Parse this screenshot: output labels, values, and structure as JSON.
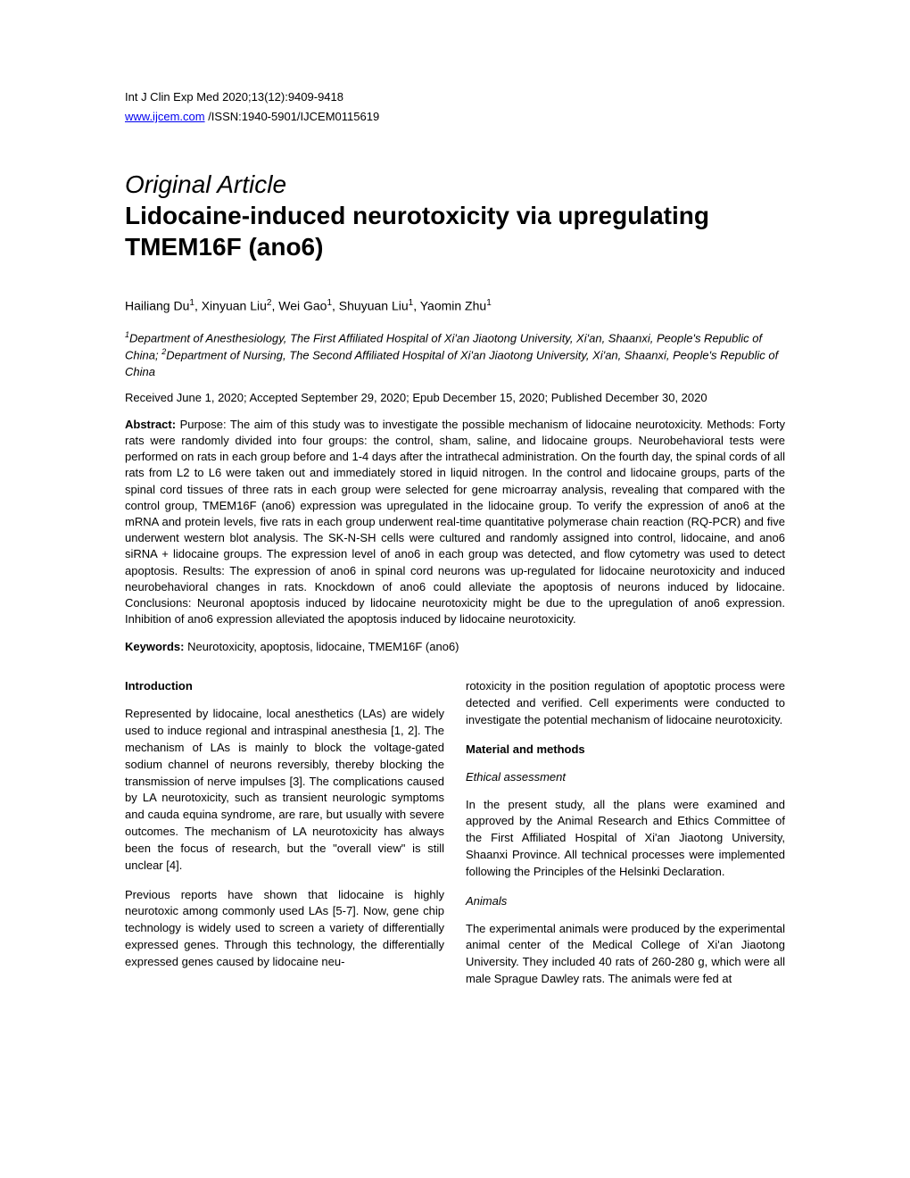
{
  "header": {
    "journal_ref": "Int J Clin Exp Med 2020;13(12):9409-9418",
    "link_text": "www.ijcem.com",
    "issn_text": " /ISSN:1940-5901/IJCEM0115619"
  },
  "article": {
    "type": "Original Article",
    "title": "Lidocaine-induced neurotoxicity via upregulating TMEM16F (ano6)"
  },
  "authors": {
    "a1_name": "Hailiang Du",
    "a1_sup": "1",
    "a2_name": ", Xinyuan Liu",
    "a2_sup": "2",
    "a3_name": ", Wei Gao",
    "a3_sup": "1",
    "a4_name": ", Shuyuan Liu",
    "a4_sup": "1",
    "a5_name": ", Yaomin Zhu",
    "a5_sup": "1"
  },
  "affiliations": {
    "sup1": "1",
    "text1": "Department of Anesthesiology, The First Affiliated Hospital of Xi'an Jiaotong University, Xi'an, Shaanxi, People's Republic of China; ",
    "sup2": "2",
    "text2": "Department of Nursing, The Second Affiliated Hospital of Xi'an Jiaotong University, Xi'an, Shaanxi, People's Republic of China"
  },
  "dates": "Received June 1, 2020; Accepted September 29, 2020; Epub December 15, 2020; Published December 30, 2020",
  "abstract": {
    "label": "Abstract:",
    "text": " Purpose: The aim of this study was to investigate the possible mechanism of lidocaine neurotoxicity. Methods: Forty rats were randomly divided into four groups: the control, sham, saline, and lidocaine groups. Neurobehavioral tests were performed on rats in each group before and 1-4 days after the intrathecal administration. On the fourth day, the spinal cords of all rats from L2 to L6 were taken out and immediately stored in liquid nitrogen. In the control and lidocaine groups, parts of the spinal cord tissues of three rats in each group were selected for gene microarray analysis, revealing that compared with the control group, TMEM16F (ano6) expression was upregulated in the lidocaine group. To verify the expression of ano6 at the mRNA and protein levels, five rats in each group underwent real-time quantitative polymerase chain reaction (RQ-PCR) and five underwent western blot analysis. The SK-N-SH cells were cultured and randomly assigned into control, lidocaine, and ano6 siRNA + lidocaine groups. The expression level of ano6 in each group was detected, and flow cytometry was used to detect apoptosis. Results: The expression of ano6 in spinal cord neurons was up-regulated for lidocaine neurotoxicity and induced neurobehavioral changes in rats. Knockdown of ano6 could alleviate the apoptosis of neurons induced by lidocaine. Conclusions: Neuronal apoptosis induced by lidocaine neurotoxicity might be due to the upregulation of ano6 expression. Inhibition of ano6 expression alleviated the apoptosis induced by lidocaine neurotoxicity."
  },
  "keywords": {
    "label": "Keywords:",
    "text": " Neurotoxicity, apoptosis, lidocaine, TMEM16F (ano6)"
  },
  "body": {
    "left": {
      "intro_heading": "Introduction",
      "para1": "Represented by lidocaine, local anesthetics (LAs) are widely used to induce regional and intraspinal anesthesia [1, 2]. The mechanism of LAs is mainly to block the voltage-gated sodium channel of neurons reversibly, thereby blocking the transmission of nerve impulses [3]. The complications caused by LA neurotoxicity, such as transient neurologic symptoms and cauda equina syndrome, are rare, but usually with severe outcomes. The mechanism of LA neurotoxicity has always been the focus of research, but the \"overall view\" is still unclear [4].",
      "para2": "Previous reports have shown that lidocaine is highly neurotoxic among commonly used LAs [5-7]. Now, gene chip technology is widely used to screen a variety of differentially expressed genes. Through this technology, the differentially expressed genes caused by lidocaine neu-"
    },
    "right": {
      "para1": "rotoxicity in the position regulation of apoptotic process were detected and verified. Cell experiments were conducted to investigate the potential mechanism of lidocaine neurotoxicity.",
      "methods_heading": "Material and methods",
      "ethical_heading": "Ethical assessment",
      "para2": "In the present study, all the plans were examined and approved by the Animal Research and Ethics Committee of the First Affiliated Hospital of Xi'an Jiaotong University, Shaanxi Province. All technical processes were implemented following the Principles of the Helsinki Declaration.",
      "animals_heading": "Animals",
      "para3": "The experimental animals were produced by the experimental animal center of the Medical College of Xi'an Jiaotong University. They included 40 rats of 260-280 g, which were all male Sprague Dawley rats. The animals were fed at"
    }
  }
}
